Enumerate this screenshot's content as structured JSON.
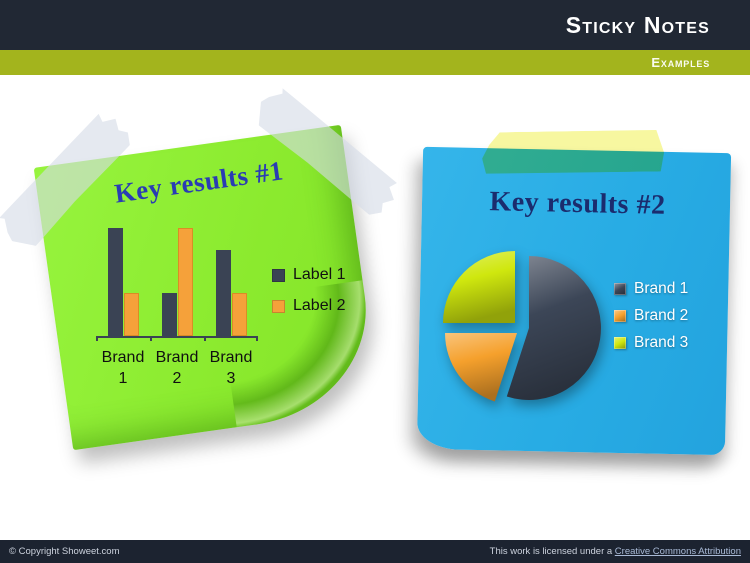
{
  "header": {
    "title": "Sticky Notes",
    "subtitle": "Examples",
    "bar_color": "#a3b41d",
    "bg_color": "#212834"
  },
  "notes": {
    "note1": {
      "title": "Key results #1",
      "color": "#8bea2e"
    },
    "note2": {
      "title": "Key results #2",
      "color": "#28ace4"
    }
  },
  "footer": {
    "copyright": "© Copyright Showeet.com",
    "license_text": "This work is licensed under a",
    "license_link": "Creative Commons Attribution"
  },
  "chart_data": [
    {
      "type": "bar",
      "title": "Key results #1",
      "categories": [
        "Brand 1",
        "Brand 2",
        "Brand 3"
      ],
      "series": [
        {
          "name": "Label 1",
          "values": [
            100,
            40,
            80
          ]
        },
        {
          "name": "Label 2",
          "values": [
            40,
            100,
            40
          ]
        }
      ],
      "colors": [
        "#3a4354",
        "#f5a13a"
      ],
      "xlabel": "",
      "ylabel": "",
      "ylim": [
        0,
        100
      ],
      "grid": false,
      "value_axis_visible": false,
      "legend_position": "right"
    },
    {
      "type": "pie",
      "title": "Key results #2",
      "labels": [
        "Brand 1",
        "Brand 2",
        "Brand 3"
      ],
      "values": [
        55,
        20,
        25
      ],
      "colors": [
        "#3c4657",
        "#f5a02c",
        "#cfe70e"
      ],
      "exploded": true,
      "legend_position": "right"
    }
  ]
}
